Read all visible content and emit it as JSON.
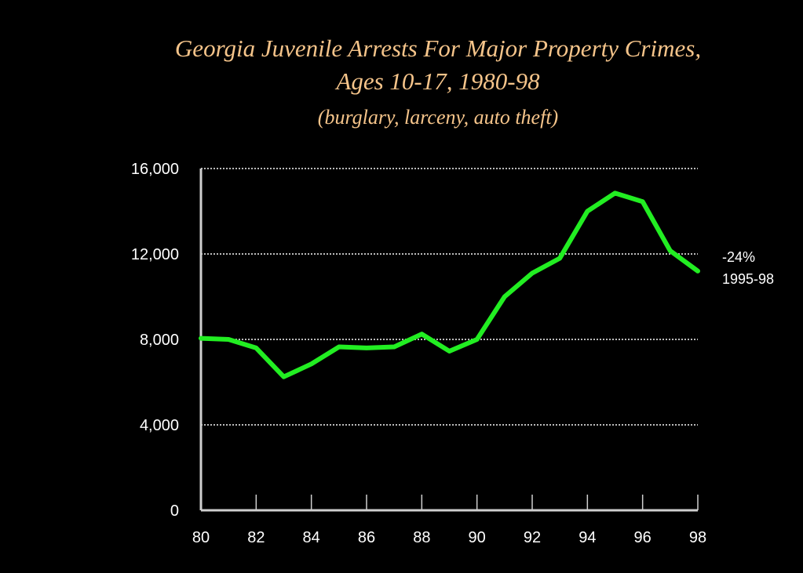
{
  "chart_data": {
    "type": "line",
    "title_lines": [
      "Georgia Juvenile Arrests For Major Property Crimes,",
      "Ages 10-17, 1980-98"
    ],
    "subtitle": "(burglary, larceny, auto theft)",
    "xlabel": "",
    "ylabel": "",
    "x": [
      80,
      81,
      82,
      83,
      84,
      85,
      86,
      87,
      88,
      89,
      90,
      91,
      92,
      93,
      94,
      95,
      96,
      97,
      98
    ],
    "series": [
      {
        "values": [
          8050,
          8000,
          7600,
          6250,
          6850,
          7650,
          7600,
          7650,
          8250,
          7450,
          8000,
          10000,
          11100,
          11800,
          14000,
          14850,
          14450,
          12150,
          11200
        ]
      }
    ],
    "xlim": [
      80,
      98
    ],
    "ylim": [
      0,
      16000
    ],
    "x_tick_labels": [
      "80",
      "82",
      "84",
      "86",
      "88",
      "90",
      "92",
      "94",
      "96",
      "98"
    ],
    "y_tick_labels": [
      "0",
      "4,000",
      "8,000",
      "12,000",
      "16,000"
    ],
    "annotation": [
      "-24%",
      "1995-98"
    ],
    "grid": "horizontal-dotted",
    "colors": {
      "background": "#000000",
      "line": "#22ee22",
      "title": "#f5c48a",
      "axis": "#cfcfcf",
      "grid": "#bbbbbb",
      "text": "#ffffff"
    }
  }
}
